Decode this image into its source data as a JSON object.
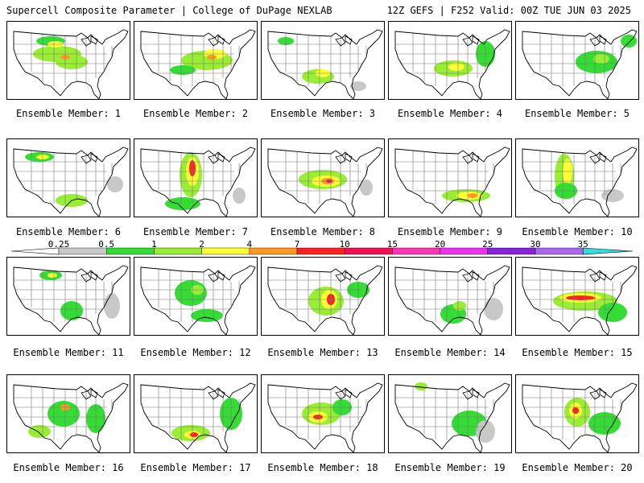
{
  "header": {
    "left_title": "Supercell Composite Parameter | College of DuPage NEXLAB",
    "right_title": "12Z GEFS | F252 Valid: 00Z TUE JUN 03 2025"
  },
  "panels": [
    {
      "caption": "Ensemble Member: 1"
    },
    {
      "caption": "Ensemble Member: 2"
    },
    {
      "caption": "Ensemble Member: 3"
    },
    {
      "caption": "Ensemble Member: 4"
    },
    {
      "caption": "Ensemble Member: 5"
    },
    {
      "caption": "Ensemble Member: 6"
    },
    {
      "caption": "Ensemble Member: 7"
    },
    {
      "caption": "Ensemble Member: 8"
    },
    {
      "caption": "Ensemble Member: 9"
    },
    {
      "caption": "Ensemble Member: 10"
    },
    {
      "caption": "Ensemble Member: 11"
    },
    {
      "caption": "Ensemble Member: 12"
    },
    {
      "caption": "Ensemble Member: 13"
    },
    {
      "caption": "Ensemble Member: 14"
    },
    {
      "caption": "Ensemble Member: 15"
    },
    {
      "caption": "Ensemble Member: 16"
    },
    {
      "caption": "Ensemble Member: 17"
    },
    {
      "caption": "Ensemble Member: 18"
    },
    {
      "caption": "Ensemble Member: 19"
    },
    {
      "caption": "Ensemble Member: 20"
    }
  ],
  "colorbar": {
    "labels": [
      "0.25",
      "0.5",
      "1",
      "2",
      "4",
      "7",
      "10",
      "15",
      "20",
      "25",
      "30",
      "35"
    ],
    "colors": [
      "#c8c8c8",
      "#33dd33",
      "#99ee33",
      "#ffff33",
      "#ff9922",
      "#ff2222",
      "#ee1155",
      "#ff33bb",
      "#ee33ee",
      "#8822dd",
      "#aa66ee",
      "#33dddd"
    ]
  },
  "map_colors": {
    "land": "#ffffff",
    "borders": "#000000",
    "state_lines": "#777777",
    "level_0_25": "#c8c8c8",
    "level_0_5": "#33dd33",
    "level_1": "#99ee33",
    "level_2": "#ffff33",
    "level_4": "#ff9922",
    "level_7": "#ff2222",
    "level_10": "#ee1155"
  }
}
